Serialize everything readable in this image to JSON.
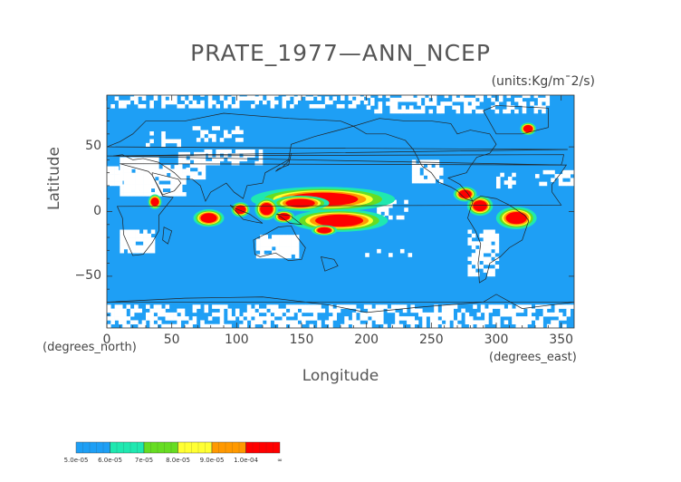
{
  "chart_data": {
    "type": "heatmap",
    "title": "PRATE_1977—ANN_NCEP",
    "units": "(units:Kg/m¯2/s)",
    "xlabel": "Longitude",
    "ylabel": "Latitude",
    "x_note": "(degrees_east)",
    "y_note": "(degrees_north)",
    "xlim": [
      0,
      360
    ],
    "ylim": [
      -90,
      90
    ],
    "x_ticks": [
      "0",
      "50",
      "100",
      "150",
      "200",
      "250",
      "300",
      "350"
    ],
    "x_tick_values": [
      0,
      50,
      100,
      150,
      200,
      250,
      300,
      350
    ],
    "y_ticks": [
      "50",
      "0",
      "−50"
    ],
    "y_tick_values": [
      50,
      0,
      -50
    ],
    "colorbar": {
      "labels": [
        "5.0e-05",
        "6.0e-05",
        "7e-05",
        "8.0e-05",
        "9.0e-05",
        "1.0e-04",
        "∞"
      ],
      "colors": [
        "#1e9ff5",
        "#1fe8b0",
        "#66dd22",
        "#ffff33",
        "#ff9900",
        "#ff0000"
      ]
    },
    "precip_regions": [
      {
        "lon": [
          138,
          195
        ],
        "lat": [
          14,
          5
        ],
        "level": 5
      },
      {
        "lon": [
          138,
          160
        ],
        "lat": [
          9,
          4
        ],
        "level": 5
      },
      {
        "lon": [
          160,
          198
        ],
        "lat": [
          -3,
          -11
        ],
        "level": 5
      },
      {
        "lon": [
          308,
          323
        ],
        "lat": [
          -1,
          -9
        ],
        "level": 5
      },
      {
        "lon": [
          73,
          84
        ],
        "lat": [
          -2,
          -8
        ],
        "level": 5
      },
      {
        "lon": [
          283,
          292
        ],
        "lat": [
          8,
          1
        ],
        "level": 5
      },
      {
        "lon": [
          119,
          127
        ],
        "lat": [
          6,
          -2
        ],
        "level": 5
      },
      {
        "lon": [
          133,
          140
        ],
        "lat": [
          -2,
          -6
        ],
        "level": 5
      },
      {
        "lon": [
          272,
          280
        ],
        "lat": [
          16,
          11
        ],
        "level": 5
      },
      {
        "lon": [
          322,
          327
        ],
        "lat": [
          66,
          62
        ],
        "level": 5
      },
      {
        "lon": [
          163,
          172
        ],
        "lat": [
          -13,
          -16
        ],
        "level": 5
      },
      {
        "lon": [
          35,
          39
        ],
        "lat": [
          10,
          5
        ],
        "level": 5
      },
      {
        "lon": [
          100,
          106
        ],
        "lat": [
          4,
          -1
        ],
        "level": 5
      }
    ]
  }
}
